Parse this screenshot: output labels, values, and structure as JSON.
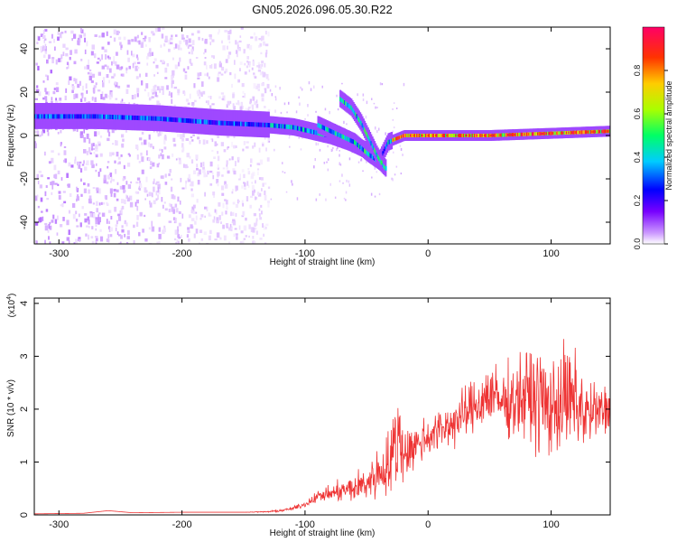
{
  "figure_title": "GN05.2026.096.05.30.R22",
  "chart_data": [
    {
      "type": "heatmap",
      "title": "GN05.2026.096.05.30.R22",
      "xlabel": "Height of straight line (km)",
      "ylabel": "Frequency (Hz)",
      "xlim": [
        -320,
        148
      ],
      "ylim": [
        -50,
        50
      ],
      "x_ticks": [
        -300,
        -200,
        -100,
        0,
        100
      ],
      "x_tick_labels": [
        "-300",
        "-200",
        "-100",
        "0",
        "100"
      ],
      "y_ticks": [
        -40,
        -20,
        0,
        20,
        40
      ],
      "y_tick_labels": [
        "-40",
        "-20",
        "0",
        "20",
        "40"
      ],
      "colorbar": {
        "label": "Normalized spectral amplitude",
        "range": [
          0,
          1
        ],
        "ticks": [
          0.0,
          0.2,
          0.4,
          0.6,
          0.8
        ],
        "tick_labels": [
          "0.0",
          "0.2",
          "0.4",
          "0.6",
          "0.8"
        ],
        "colormap": [
          "#ffffff",
          "#cc99ff",
          "#7700ff",
          "#0000ff",
          "#00ccff",
          "#00ff66",
          "#aaff00",
          "#ffcc00",
          "#ff3300",
          "#ff0066"
        ]
      },
      "ridges": [
        {
          "name": "main",
          "points": [
            [
              -320,
              9
            ],
            [
              -270,
              9
            ],
            [
              -220,
              8
            ],
            [
              -170,
              6
            ],
            [
              -130,
              5
            ],
            [
              -110,
              4
            ],
            [
              -95,
              2
            ],
            [
              -80,
              0
            ],
            [
              -65,
              -3
            ],
            [
              -50,
              -7
            ],
            [
              -40,
              -11
            ],
            [
              -33,
              -3
            ],
            [
              -20,
              0
            ],
            [
              0,
              0
            ],
            [
              50,
              0
            ],
            [
              100,
              1
            ],
            [
              148,
              2
            ]
          ]
        },
        {
          "name": "branch-1",
          "points": [
            [
              -90,
              5
            ],
            [
              -75,
              1
            ],
            [
              -60,
              -3
            ],
            [
              -50,
              -8
            ],
            [
              -40,
              -12
            ],
            [
              -35,
              -15
            ]
          ]
        },
        {
          "name": "branch-2",
          "points": [
            [
              -72,
              17
            ],
            [
              -63,
              13
            ],
            [
              -55,
              6
            ],
            [
              -48,
              -2
            ],
            [
              -42,
              -9
            ],
            [
              -38,
              -13
            ]
          ]
        }
      ],
      "scatter_band": {
        "x_range": [
          -320,
          -130
        ],
        "y_range": [
          -50,
          50
        ]
      }
    },
    {
      "type": "line",
      "xlabel": "Height of straight line (km)",
      "ylabel": "SNR (10 * v/v)",
      "y_scale_label": "(x10",
      "y_scale_exponent": "4",
      "xlim": [
        -320,
        148
      ],
      "ylim": [
        0,
        4.1
      ],
      "x_ticks": [
        -300,
        -200,
        -100,
        0,
        100
      ],
      "x_tick_labels": [
        "-300",
        "-200",
        "-100",
        "0",
        "100"
      ],
      "y_ticks": [
        0,
        1,
        2,
        3,
        4
      ],
      "y_tick_labels": [
        "0",
        "1",
        "2",
        "3",
        "4"
      ],
      "series": [
        {
          "name": "SNR",
          "color": "#ee3333",
          "x": [
            -320,
            -280,
            -260,
            -240,
            -200,
            -150,
            -130,
            -120,
            -110,
            -100,
            -90,
            -80,
            -70,
            -60,
            -50,
            -40,
            -30,
            -25,
            -20,
            -10,
            0,
            10,
            20,
            30,
            40,
            50,
            60,
            70,
            80,
            90,
            100,
            110,
            120,
            130,
            140,
            148
          ],
          "values": [
            0.02,
            0.03,
            0.08,
            0.04,
            0.05,
            0.05,
            0.06,
            0.08,
            0.12,
            0.2,
            0.35,
            0.4,
            0.45,
            0.5,
            0.6,
            0.8,
            1.0,
            1.5,
            1.2,
            1.3,
            1.5,
            1.6,
            1.75,
            1.9,
            2.1,
            2.3,
            2.1,
            2.2,
            2.25,
            2.2,
            2.0,
            2.2,
            2.1,
            1.9,
            1.95,
            2.0
          ],
          "fluctuation": [
            0,
            0,
            0,
            0,
            0,
            0,
            0.02,
            0.03,
            0.05,
            0.08,
            0.15,
            0.2,
            0.3,
            0.4,
            0.5,
            0.7,
            1.0,
            1.6,
            0.8,
            0.6,
            0.6,
            0.6,
            0.65,
            0.7,
            0.8,
            0.9,
            0.9,
            1.0,
            1.3,
            1.5,
            1.3,
            1.5,
            1.4,
            1.0,
            0.8,
            0.6
          ]
        }
      ]
    }
  ]
}
